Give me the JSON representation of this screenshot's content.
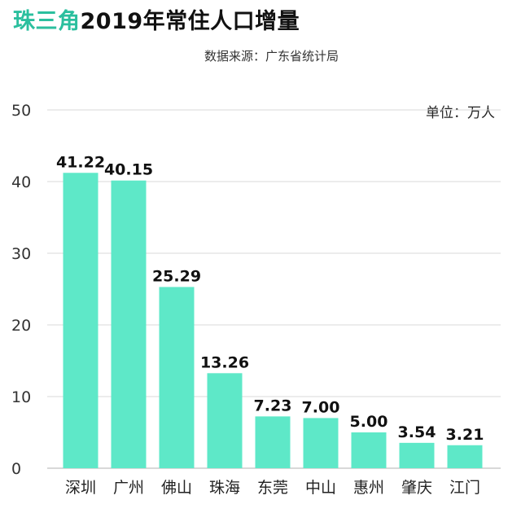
{
  "title_accent": "珠三角",
  "title_rest": "2019年常住人口增量",
  "source": "数据来源：广东省统计局",
  "unit": "单位：万人",
  "chart_data": {
    "type": "bar",
    "title": "珠三角2019年常住人口增量",
    "subtitle": "数据来源：广东省统计局",
    "ylabel": "",
    "xlabel": "",
    "unit": "单位：万人",
    "categories": [
      "深圳",
      "广州",
      "佛山",
      "珠海",
      "东莞",
      "中山",
      "惠州",
      "肇庆",
      "江门"
    ],
    "values": [
      41.22,
      40.15,
      25.29,
      13.26,
      7.23,
      7.0,
      5.0,
      3.54,
      3.21
    ],
    "data_labels": [
      "41.22",
      "40.15",
      "25.29",
      "13.26",
      "7.23",
      "7.00",
      "5.00",
      "3.54",
      "3.21"
    ],
    "ylim": [
      0,
      50
    ],
    "yticks": [
      0,
      10,
      20,
      30,
      40,
      50
    ],
    "grid": true,
    "bar_color": "#5ee8c8"
  }
}
